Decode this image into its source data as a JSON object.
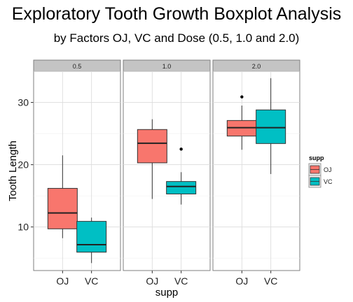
{
  "chart_data": {
    "type": "boxplot",
    "title": "Exploratory Tooth Growth Boxplot Analysis",
    "subtitle": "by Factors OJ, VC and Dose (0.5, 1.0 and 2.0)",
    "xlabel": "supp",
    "ylabel": "Tooth Length",
    "ylim": [
      3,
      35
    ],
    "yticks": [
      10,
      20,
      30
    ],
    "grid": true,
    "facet_labels": [
      "0.5",
      "1.0",
      "2.0"
    ],
    "categories": [
      "OJ",
      "VC"
    ],
    "legend": {
      "title": "supp",
      "position": "right",
      "items": [
        {
          "label": "OJ",
          "color": "#F8766D"
        },
        {
          "label": "VC",
          "color": "#00BFC4"
        }
      ]
    },
    "facets": [
      {
        "label": "0.5",
        "boxes": [
          {
            "supp": "OJ",
            "min": 8.2,
            "q1": 9.7,
            "median": 12.25,
            "q3": 16.2,
            "max": 21.5,
            "outliers": []
          },
          {
            "supp": "VC",
            "min": 4.2,
            "q1": 5.95,
            "median": 7.15,
            "q3": 10.9,
            "max": 11.5,
            "outliers": []
          }
        ]
      },
      {
        "label": "1.0",
        "boxes": [
          {
            "supp": "OJ",
            "min": 14.5,
            "q1": 20.3,
            "median": 23.45,
            "q3": 25.65,
            "max": 27.3,
            "outliers": []
          },
          {
            "supp": "VC",
            "min": 13.6,
            "q1": 15.3,
            "median": 16.5,
            "q3": 17.3,
            "max": 18.8,
            "outliers": [
              22.5
            ]
          }
        ]
      },
      {
        "label": "2.0",
        "boxes": [
          {
            "supp": "OJ",
            "min": 22.4,
            "q1": 24.6,
            "median": 25.95,
            "q3": 27.1,
            "max": 29.5,
            "outliers": [
              30.9
            ]
          },
          {
            "supp": "VC",
            "min": 18.5,
            "q1": 23.4,
            "median": 25.95,
            "q3": 28.8,
            "max": 33.9,
            "outliers": []
          }
        ]
      }
    ]
  }
}
